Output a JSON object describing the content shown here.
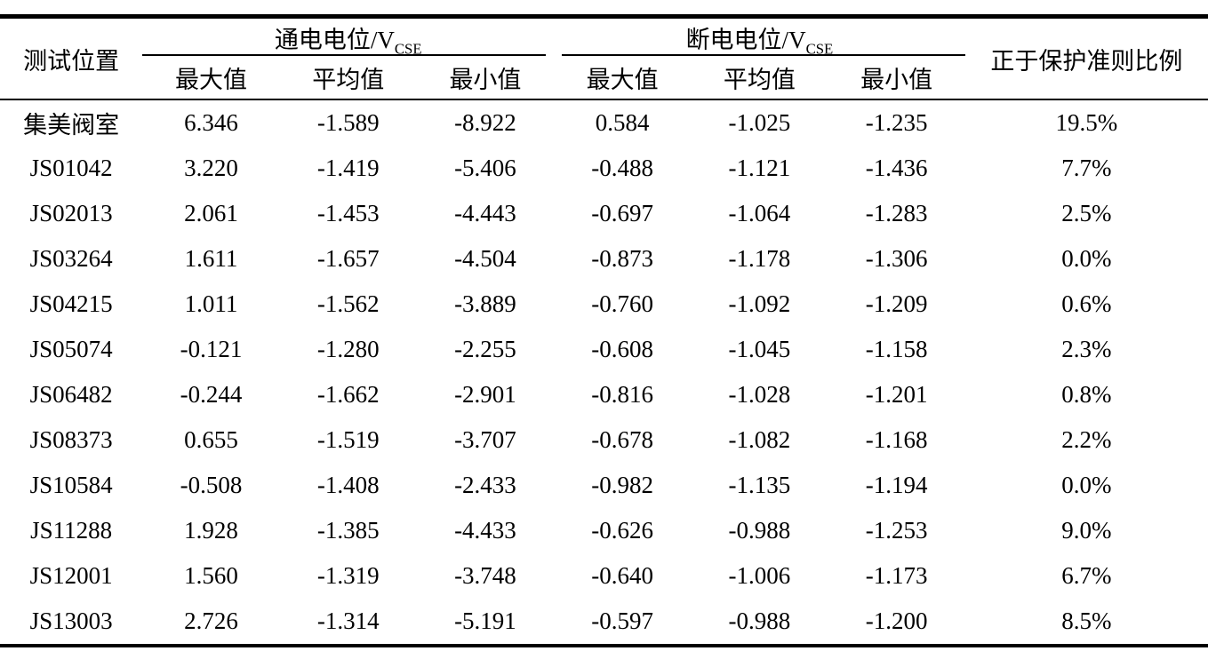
{
  "page": {
    "background_color": "#ffffff",
    "text_color": "#000000"
  },
  "table": {
    "header": {
      "position_label": "测试位置",
      "on_potential_group": {
        "label": "通电电位/V",
        "subscript": "CSE"
      },
      "off_potential_group": {
        "label": "断电电位/V",
        "subscript": "CSE"
      },
      "sub_columns": {
        "max": "最大值",
        "avg": "平均值",
        "min": "最小值"
      },
      "ratio_label": "正于保护准则比例"
    },
    "rows": [
      [
        "集美阀室",
        "6.346",
        "-1.589",
        "-8.922",
        "0.584",
        "-1.025",
        "-1.235",
        "19.5%"
      ],
      [
        "JS01042",
        "3.220",
        "-1.419",
        "-5.406",
        "-0.488",
        "-1.121",
        "-1.436",
        "7.7%"
      ],
      [
        "JS02013",
        "2.061",
        "-1.453",
        "-4.443",
        "-0.697",
        "-1.064",
        "-1.283",
        "2.5%"
      ],
      [
        "JS03264",
        "1.611",
        "-1.657",
        "-4.504",
        "-0.873",
        "-1.178",
        "-1.306",
        "0.0%"
      ],
      [
        "JS04215",
        "1.011",
        "-1.562",
        "-3.889",
        "-0.760",
        "-1.092",
        "-1.209",
        "0.6%"
      ],
      [
        "JS05074",
        "-0.121",
        "-1.280",
        "-2.255",
        "-0.608",
        "-1.045",
        "-1.158",
        "2.3%"
      ],
      [
        "JS06482",
        "-0.244",
        "-1.662",
        "-2.901",
        "-0.816",
        "-1.028",
        "-1.201",
        "0.8%"
      ],
      [
        "JS08373",
        "0.655",
        "-1.519",
        "-3.707",
        "-0.678",
        "-1.082",
        "-1.168",
        "2.2%"
      ],
      [
        "JS10584",
        "-0.508",
        "-1.408",
        "-2.433",
        "-0.982",
        "-1.135",
        "-1.194",
        "0.0%"
      ],
      [
        "JS11288",
        "1.928",
        "-1.385",
        "-4.433",
        "-0.626",
        "-0.988",
        "-1.253",
        "9.0%"
      ],
      [
        "JS12001",
        "1.560",
        "-1.319",
        "-3.748",
        "-0.640",
        "-1.006",
        "-1.173",
        "6.7%"
      ],
      [
        "JS13003",
        "2.726",
        "-1.314",
        "-5.191",
        "-0.597",
        "-0.988",
        "-1.200",
        "8.5%"
      ]
    ]
  }
}
